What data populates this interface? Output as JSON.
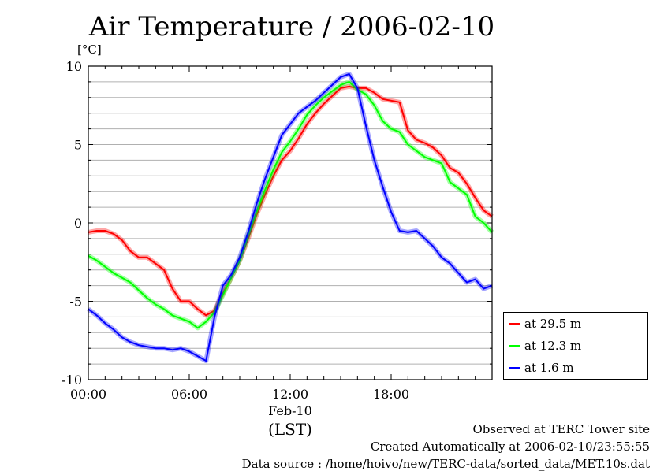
{
  "title": "Air Temperature / 2006-02-10",
  "unit_label": "[°C]",
  "footer": {
    "observed": "Observed at TERC Tower site",
    "created": "Created Automatically at 2006-02-10/23:55:55",
    "source": "Data source : /home/hoivo/new/TERC-data/sorted_data/MET.10s.dat"
  },
  "chart_data": {
    "type": "line",
    "title": "Air Temperature / 2006-02-10",
    "ylabel": "[°C]",
    "xlabel": "(LST)",
    "date_label": "Feb-10",
    "xlim": [
      0,
      24
    ],
    "ylim": [
      -10,
      10
    ],
    "x_ticks": [
      {
        "v": 0,
        "label": "00:00"
      },
      {
        "v": 6,
        "label": "06:00"
      },
      {
        "v": 12,
        "label": "12:00"
      },
      {
        "v": 18,
        "label": "18:00"
      }
    ],
    "y_ticks": [
      -10,
      -5,
      0,
      5,
      10
    ],
    "grid": true,
    "legend_position": "bottom-right, outside plot",
    "series": [
      {
        "name": "at 29.5 m",
        "color": "#ff0000",
        "x": [
          0,
          0.5,
          1,
          1.5,
          2,
          2.5,
          3,
          3.5,
          4,
          4.5,
          5,
          5.5,
          6,
          6.5,
          7,
          7.5,
          8,
          8.5,
          9,
          9.5,
          10,
          10.5,
          11,
          11.5,
          12,
          12.5,
          13,
          13.5,
          14,
          14.5,
          15,
          15.5,
          16,
          16.5,
          17,
          17.5,
          18,
          18.5,
          19,
          19.5,
          20,
          20.5,
          21,
          21.5,
          22,
          22.5,
          23,
          23.5,
          24
        ],
        "y": [
          -0.6,
          -0.5,
          -0.5,
          -0.7,
          -1.1,
          -1.8,
          -2.2,
          -2.2,
          -2.6,
          -3.0,
          -4.2,
          -5.0,
          -5.0,
          -5.5,
          -5.9,
          -5.6,
          -4.5,
          -3.5,
          -2.4,
          -1.0,
          0.5,
          1.8,
          3.0,
          4.0,
          4.6,
          5.4,
          6.3,
          7.0,
          7.6,
          8.1,
          8.6,
          8.7,
          8.6,
          8.6,
          8.3,
          7.9,
          7.8,
          7.7,
          5.9,
          5.3,
          5.1,
          4.8,
          4.3,
          3.5,
          3.2,
          2.5,
          1.6,
          0.8,
          0.4
        ]
      },
      {
        "name": "at 12.3 m",
        "color": "#00ff00",
        "x": [
          0,
          0.5,
          1,
          1.5,
          2,
          2.5,
          3,
          3.5,
          4,
          4.5,
          5,
          5.5,
          6,
          6.5,
          7,
          7.5,
          8,
          8.5,
          9,
          9.5,
          10,
          10.5,
          11,
          11.5,
          12,
          12.5,
          13,
          13.5,
          14,
          14.5,
          15,
          15.5,
          16,
          16.5,
          17,
          17.5,
          18,
          18.5,
          19,
          19.5,
          20,
          20.5,
          21,
          21.5,
          22,
          22.5,
          23,
          23.5,
          24
        ],
        "y": [
          -2.1,
          -2.4,
          -2.8,
          -3.2,
          -3.5,
          -3.8,
          -4.3,
          -4.8,
          -5.2,
          -5.5,
          -5.9,
          -6.1,
          -6.3,
          -6.7,
          -6.3,
          -5.7,
          -4.6,
          -3.5,
          -2.4,
          -0.8,
          0.7,
          2.1,
          3.4,
          4.5,
          5.2,
          6.0,
          6.9,
          7.5,
          8.0,
          8.4,
          8.8,
          9.0,
          8.5,
          8.2,
          7.5,
          6.5,
          6.0,
          5.8,
          5.0,
          4.6,
          4.2,
          4.0,
          3.8,
          2.6,
          2.2,
          1.8,
          0.4,
          0.0,
          -0.6
        ]
      },
      {
        "name": "at 1.6 m",
        "color": "#0000ff",
        "x": [
          0,
          0.5,
          1,
          1.5,
          2,
          2.5,
          3,
          3.5,
          4,
          4.5,
          5,
          5.5,
          6,
          6.5,
          7,
          7.5,
          8,
          8.5,
          9,
          9.5,
          10,
          10.5,
          11,
          11.5,
          12,
          12.5,
          13,
          13.5,
          14,
          14.5,
          15,
          15.5,
          16,
          16.5,
          17,
          17.5,
          18,
          18.5,
          19,
          19.5,
          20,
          20.5,
          21,
          21.5,
          22,
          22.5,
          23,
          23.5,
          24
        ],
        "y": [
          -5.5,
          -5.9,
          -6.4,
          -6.8,
          -7.3,
          -7.6,
          -7.8,
          -7.9,
          -8.0,
          -8.0,
          -8.1,
          -8.0,
          -8.2,
          -8.5,
          -8.8,
          -6.0,
          -4.0,
          -3.3,
          -2.2,
          -0.6,
          1.2,
          2.8,
          4.2,
          5.6,
          6.3,
          7.0,
          7.4,
          7.8,
          8.3,
          8.8,
          9.3,
          9.5,
          8.6,
          6.2,
          4.0,
          2.3,
          0.7,
          -0.5,
          -0.6,
          -0.5,
          -1.0,
          -1.5,
          -2.2,
          -2.6,
          -3.2,
          -3.8,
          -3.6,
          -4.2,
          -4.0
        ]
      }
    ]
  }
}
